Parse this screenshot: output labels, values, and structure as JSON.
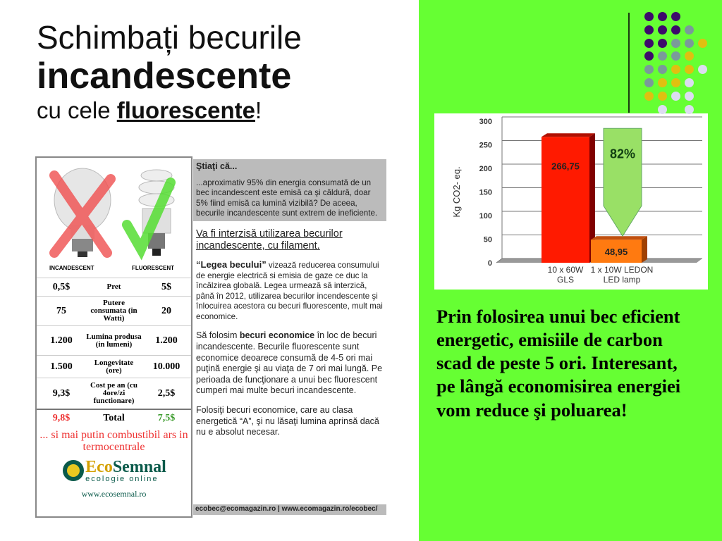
{
  "title": {
    "line1": "Schimbați becurile",
    "line2": "incandescente",
    "line3_prefix": "cu cele ",
    "line3_bold": "fluorescente",
    "line3_suffix": "!"
  },
  "comparison": {
    "incandescent_label": "INCANDESCENT",
    "fluorescent_label": "FLUORESCENT",
    "rows": [
      {
        "left": "0,5$",
        "label": "Pret",
        "right": "5$"
      },
      {
        "left": "75",
        "label": "Putere consumata (in Watti)",
        "right": "20"
      },
      {
        "left": "1.200",
        "label": "Lumina produsa (in lumeni)",
        "right": "1.200"
      },
      {
        "left": "1.500",
        "label": "Longevitate (ore)",
        "right": "10.000"
      },
      {
        "left": "9,3$",
        "label": "Cost pe an (cu 4ore/zi functionare)",
        "right": "2,5$"
      }
    ],
    "total": {
      "left": "9,8$",
      "label": "Total",
      "right": "7,5$"
    },
    "slogan": "... si mai putin combustibil ars in termocentrale",
    "logo": {
      "name_a": "Eco",
      "name_b": "Semnal",
      "sub": "ecologie online"
    },
    "url": "www.ecosemnal.ro",
    "colors": {
      "bad": "#e33333",
      "good": "#3a9a2a"
    }
  },
  "info": {
    "know_title": "Ştiaţi că...",
    "know_text": "...aproximativ 95% din energia consumată de un bec incandescent este emisă ca şi căldură, doar 5% fiind emisă ca lumină vizibilă? De aceea, becurile incandescente sunt extrem de ineficiente.",
    "heading": "Va fi interzisă utilizarea becurilor incandescente, cu filament.",
    "law_bold": "“Legea becului”",
    "law_text": " vizează reducerea consumului de energie electrică si emisia de gaze ce duc la încălzirea globală. Legea urmează să interzică, până în 2012, utilizarea becurilor incendescente şi înlocuirea acestora cu becuri fluorescente, mult mai economice.",
    "eco_pre": "Să folosim ",
    "eco_bold": "becuri economice",
    "eco_text": " în loc de becuri incandescente. Becurile fluorescente sunt economice deoarece consumă de 4-5 ori mai puţină energie şi au viaţa de 7 ori mai lungă. Pe perioada de funcţionare a unui bec fluorescent cumperi mai multe becuri incandescente.",
    "advice": "Folosiţi becuri economice, care au clasa energetică “A”,  şi nu lăsaţi lumina aprinsă dacă nu e absolut necesar.",
    "footer": "ecobec@ecomagazin.ro | www.ecomagazin.ro/ecobec/"
  },
  "chart_data": {
    "type": "bar",
    "categories": [
      "10 x 60W GLS",
      "1 x 10W LEDON LED lamp"
    ],
    "category_lines": [
      [
        "10 x 60W",
        "GLS"
      ],
      [
        "1 x 10W LEDON",
        "LED lamp"
      ]
    ],
    "values": [
      266.75,
      48.95
    ],
    "data_labels": [
      "266,75",
      "48,95"
    ],
    "annotation": "82%",
    "ylabel": "Kg CO2- eq.",
    "ylim": [
      0,
      300
    ],
    "yticks": [
      0,
      50,
      100,
      150,
      200,
      250,
      300
    ],
    "grid": true,
    "colors": [
      "#ff1a00",
      "#ff7a10"
    ],
    "annotation_color": "#99e066"
  },
  "side_text": "Prin folosirea unui bec eficient energetic, emisiile de carbon scad de peste 5 ori. Interesant, pe  lângă economisirea energiei vom reduce şi poluarea!",
  "decor": {
    "dots": [
      "PPP__",
      "PPPG_",
      "PPGGY",
      "PGGY_",
      "GGYYW",
      "GYYW_",
      "YYWW_",
      "_W_W_"
    ],
    "dot_colors": {
      "P": "#3d0a6b",
      "G": "#7a9a9a",
      "Y": "#e0c010",
      "W": "#dcdcf0"
    },
    "background": "#66ff33"
  }
}
